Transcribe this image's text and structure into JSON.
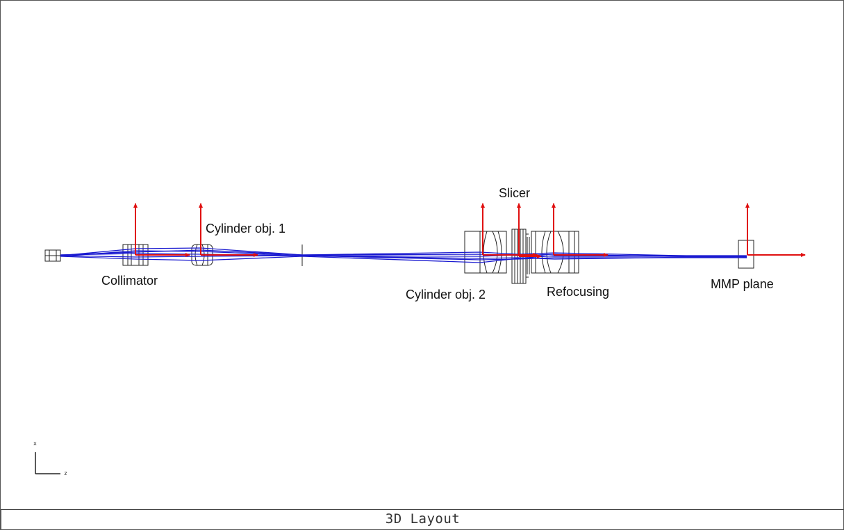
{
  "footer": {
    "title": "3D Layout"
  },
  "labels": {
    "collimator": "Collimator",
    "cylinder_obj_1": "Cylinder obj. 1",
    "slicer": "Slicer",
    "cylinder_obj_2": "Cylinder obj. 2",
    "refocusing": "Refocusing",
    "mmp_plane": "MMP plane"
  },
  "axes": {
    "vertical": "x",
    "horizontal": "z"
  },
  "colors": {
    "rays": "#1a1ad0",
    "axes_arrows": "#e01010",
    "components": "#222222"
  }
}
